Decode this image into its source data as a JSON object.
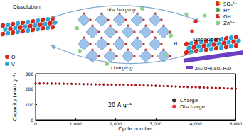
{
  "diagram": {
    "labels": {
      "left": "Dissolution",
      "top": "discharging",
      "bottom": "charging",
      "right": "Deposition",
      "ion": "H⁺",
      "product": "Zn₄(OH)₆SO₄·H₂O"
    },
    "legend": [
      {
        "label": "SO₄²⁻"
      },
      {
        "label": "H⁺"
      },
      {
        "label": "OH⁻"
      },
      {
        "label": "Zn²⁺"
      },
      {
        "label": "O"
      },
      {
        "label": "V"
      }
    ]
  },
  "chart_data": {
    "type": "scatter",
    "x_label": "Cycle number",
    "y_label": "Capacity (mAh g⁻¹)",
    "annotation": "20 A g⁻¹",
    "x": [
      0,
      100,
      200,
      300,
      400,
      500,
      600,
      700,
      800,
      900,
      1000,
      1100,
      1200,
      1300,
      1400,
      1500,
      1600,
      1700,
      1800,
      1900,
      2000,
      2100,
      2200,
      2300,
      2400,
      2500,
      2600,
      2700,
      2800,
      2900,
      3000,
      3100,
      3200,
      3300,
      3400,
      3500,
      3600,
      3700,
      3800,
      3900,
      4000,
      4100,
      4200,
      4300,
      4400,
      4500,
      4600,
      4700,
      4800,
      4900,
      5000
    ],
    "series": [
      {
        "name": "Charge",
        "color": "#000000",
        "marker": "circle",
        "values": [
          236,
          236,
          237,
          236,
          236,
          235,
          235,
          235,
          234,
          234,
          233,
          233,
          232,
          232,
          231,
          231,
          230,
          230,
          229,
          229,
          228,
          228,
          227,
          226,
          226,
          225,
          224,
          224,
          223,
          222,
          221,
          220,
          219,
          219,
          218,
          217,
          216,
          215,
          214,
          213,
          212,
          211,
          210,
          209,
          208,
          207,
          206,
          205,
          204,
          203,
          202
        ]
      },
      {
        "name": "Discharge",
        "color": "#e8000b",
        "marker": "circle",
        "values": [
          236,
          236,
          237,
          236,
          236,
          235,
          235,
          235,
          234,
          234,
          233,
          233,
          232,
          232,
          231,
          231,
          230,
          230,
          229,
          229,
          228,
          228,
          227,
          226,
          226,
          225,
          224,
          224,
          223,
          222,
          221,
          220,
          219,
          219,
          218,
          217,
          216,
          215,
          214,
          213,
          212,
          211,
          210,
          209,
          208,
          207,
          206,
          205,
          204,
          203,
          202
        ]
      }
    ],
    "xlim": [
      0,
      5000
    ],
    "xticks": [
      0,
      1000,
      2000,
      3000,
      4000,
      5000
    ],
    "ylim": [
      0,
      300
    ],
    "yticks": [
      0,
      100,
      200,
      300
    ],
    "legend": "right",
    "grid": false
  }
}
